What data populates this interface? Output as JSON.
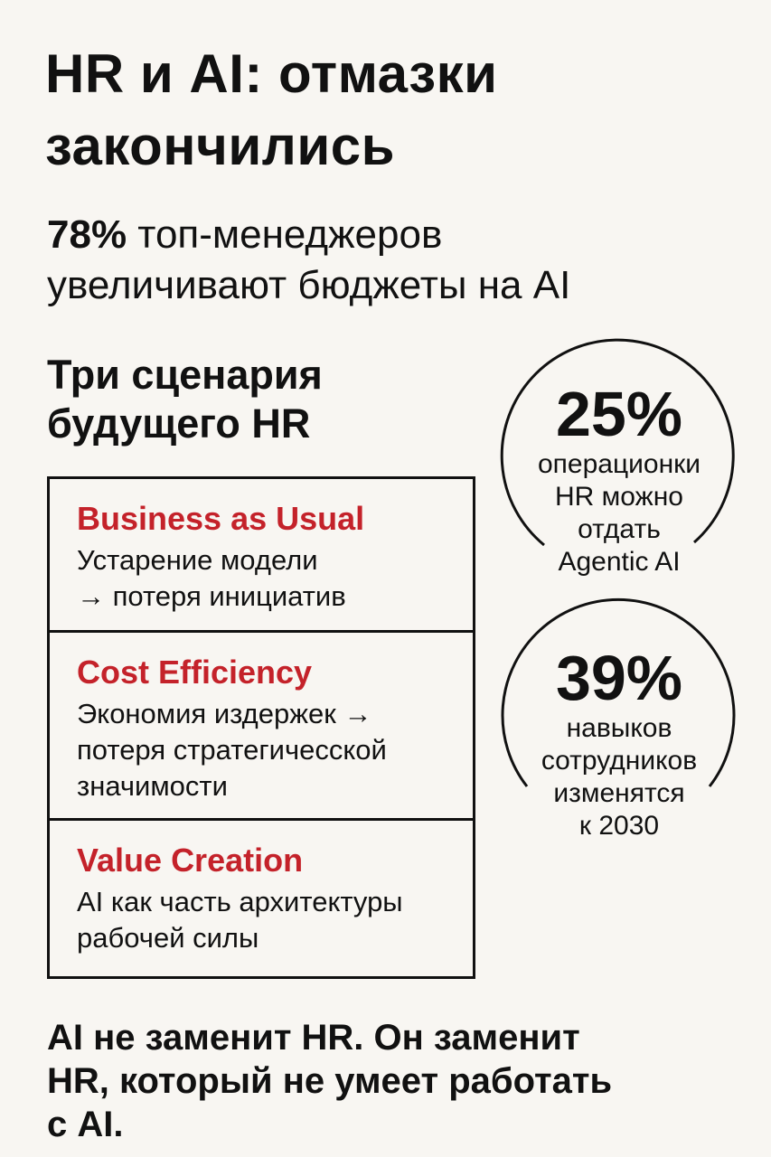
{
  "title": [
    "HR и AI: отмазки",
    "закончились"
  ],
  "subtitle": {
    "highlight": "78%",
    "rest": " топ-менеджеров",
    "line2": "увеличивают бюджеты на AI"
  },
  "section_title": [
    "Три сценария",
    "будущего HR"
  ],
  "scenarios": [
    {
      "title": "Business as Usual",
      "lines": [
        "Устарение модели",
        "→ потеря инициатив"
      ]
    },
    {
      "title": "Cost Efficiency",
      "lines": [
        "Экономия издержек →",
        "потеря стратегичесской",
        "значимости"
      ]
    },
    {
      "title": "Value Creation",
      "lines": [
        "AI как часть архитектуры",
        "рабочей силы"
      ]
    }
  ],
  "stats": [
    {
      "value": "25%",
      "lines": [
        "операционки",
        "HR можно",
        "отдать",
        "Agentic AI"
      ]
    },
    {
      "value": "39%",
      "lines": [
        "навыков",
        "сотрудников",
        "изменятся",
        "к 2030"
      ]
    }
  ],
  "footer": [
    "AI не заменит HR. Он заменит",
    "HR, который не умеет работать",
    "с AI."
  ],
  "colors": {
    "accent": "#c4222a",
    "background": "#f8f6f2",
    "text": "#111111"
  }
}
